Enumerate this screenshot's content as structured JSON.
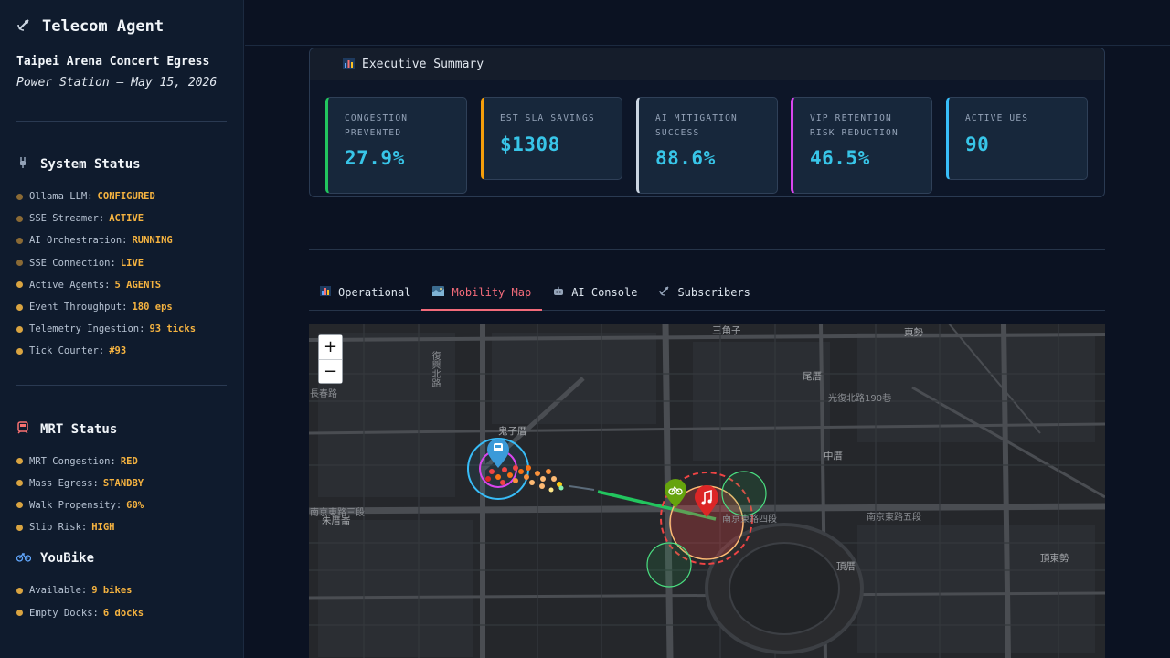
{
  "sidebar": {
    "app_icon": "satellite-antenna-icon",
    "app_title": "Telecom Agent",
    "event": {
      "name": "Taipei Arena Concert Egress",
      "subtitle": "Power Station — May 15, 2026"
    },
    "system_status": {
      "icon": "plug-icon",
      "title": "System Status",
      "items": [
        {
          "label": "Ollama LLM:",
          "value": "CONFIGURED"
        },
        {
          "label": "SSE Streamer:",
          "value": "ACTIVE"
        },
        {
          "label": "AI Orchestration:",
          "value": "RUNNING"
        },
        {
          "label": "SSE Connection:",
          "value": "LIVE"
        },
        {
          "label": "Active Agents:",
          "value": "5 AGENTS"
        },
        {
          "label": "Event Throughput:",
          "value": "180 eps"
        },
        {
          "label": "Telemetry Ingestion:",
          "value": "93 ticks"
        },
        {
          "label": "Tick Counter:",
          "value": "#93"
        }
      ]
    },
    "mrt_status": {
      "icon": "train-icon",
      "title": "MRT Status",
      "items": [
        {
          "label": "MRT Congestion:",
          "value": "RED"
        },
        {
          "label": "Mass Egress:",
          "value": "STANDBY"
        },
        {
          "label": "Walk Propensity:",
          "value": "60%"
        },
        {
          "label": "Slip Risk:",
          "value": "HIGH"
        }
      ]
    },
    "youbike": {
      "icon": "bicycle-icon",
      "title": "YouBike",
      "items": [
        {
          "label": "Available:",
          "value": "9 bikes"
        },
        {
          "label": "Empty Docks:",
          "value": "6 docks"
        }
      ]
    }
  },
  "exec_summary": {
    "icon": "bar-chart-icon",
    "title": "Executive Summary",
    "kpis": [
      {
        "label": "Congestion Prevented",
        "value": "27.9%",
        "color": "#22c55e"
      },
      {
        "label": "Est SLA Savings",
        "value": "$1308",
        "color": "#f59e0b"
      },
      {
        "label": "AI Mitigation Success",
        "value": "88.6%",
        "color": "#cbd5e1"
      },
      {
        "label": "VIP Retention Risk Reduction",
        "value": "46.5%",
        "color": "#d946ef"
      },
      {
        "label": "Active UEs",
        "value": "90",
        "color": "#38bdf8"
      }
    ]
  },
  "tabs": [
    {
      "label": "Operational",
      "icon": "bar-chart-icon",
      "active": false
    },
    {
      "label": "Mobility Map",
      "icon": "map-icon",
      "active": true
    },
    {
      "label": "AI Console",
      "icon": "robot-icon",
      "active": false
    },
    {
      "label": "Subscribers",
      "icon": "satellite-antenna-icon",
      "active": false
    }
  ],
  "map": {
    "zoom_in": "+",
    "zoom_out": "−",
    "labels": [
      "三角子",
      "東勢",
      "尾厝",
      "鬼子厝",
      "中厝",
      "朱厝崙",
      "頂厝",
      "頂東勢",
      "南京東路三段",
      "南京東路四段",
      "南京東路五段",
      "光復北路190巷",
      "復興北路",
      "長春路"
    ]
  }
}
